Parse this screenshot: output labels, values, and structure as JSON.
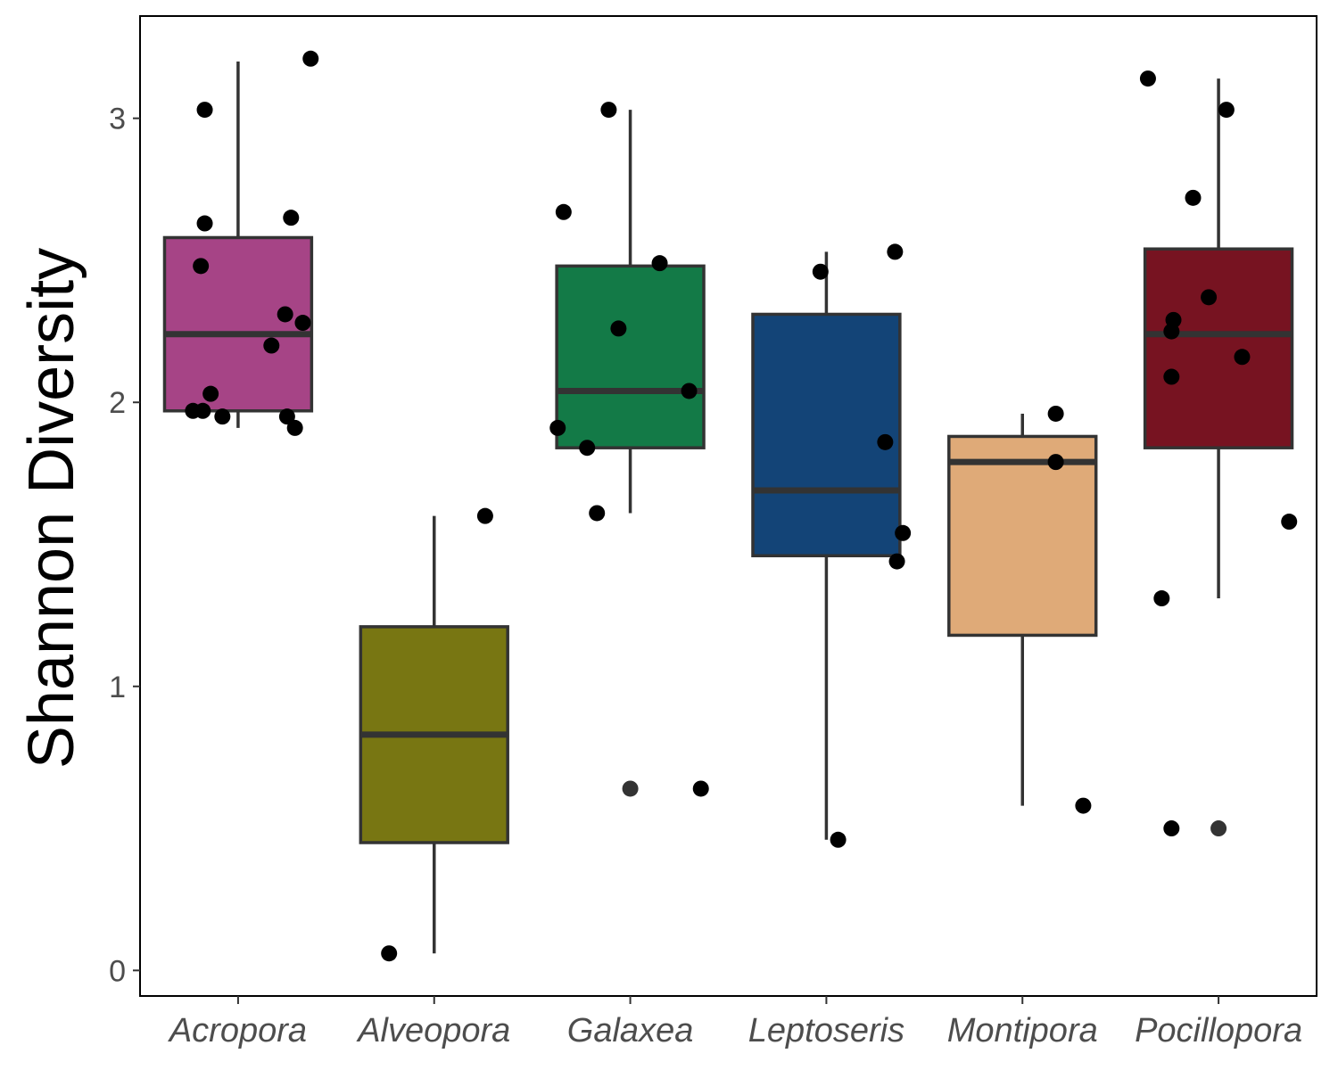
{
  "chart_data": {
    "type": "box",
    "ylabel": "Shannon Diversity",
    "xlabel": "",
    "ylim": [
      -0.09,
      3.36
    ],
    "yticks": [
      0,
      1,
      2,
      3
    ],
    "grid": false,
    "legend": "none",
    "categories": [
      "Acropora",
      "Alveopora",
      "Galaxea",
      "Leptoseris",
      "Montipora",
      "Pocillopora"
    ],
    "colors": [
      "#a64486",
      "#787612",
      "#137a47",
      "#134477",
      "#dfaa78",
      "#771321"
    ],
    "boxes": [
      {
        "category": "Acropora",
        "whisker_low": 1.91,
        "q1": 1.97,
        "median": 2.24,
        "q3": 2.58,
        "whisker_high": 3.2,
        "outliers": []
      },
      {
        "category": "Alveopora",
        "whisker_low": 0.06,
        "q1": 0.45,
        "median": 0.83,
        "q3": 1.21,
        "whisker_high": 1.6,
        "outliers": []
      },
      {
        "category": "Galaxea",
        "whisker_low": 1.61,
        "q1": 1.84,
        "median": 2.04,
        "q3": 2.48,
        "whisker_high": 3.03,
        "outliers": [
          0.64
        ]
      },
      {
        "category": "Leptoseris",
        "whisker_low": 0.46,
        "q1": 1.46,
        "median": 1.69,
        "q3": 2.31,
        "whisker_high": 2.53,
        "outliers": []
      },
      {
        "category": "Montipora",
        "whisker_low": 0.58,
        "q1": 1.18,
        "median": 1.79,
        "q3": 1.88,
        "whisker_high": 1.96,
        "outliers": []
      },
      {
        "category": "Pocillopora",
        "whisker_low": 1.31,
        "q1": 1.84,
        "median": 2.24,
        "q3": 2.54,
        "whisker_high": 3.14,
        "outliers": [
          0.5
        ]
      }
    ],
    "points": [
      {
        "category": "Acropora",
        "jitter": -0.17,
        "y": 3.03
      },
      {
        "category": "Acropora",
        "jitter": 0.37,
        "y": 3.21
      },
      {
        "category": "Acropora",
        "jitter": -0.17,
        "y": 2.63
      },
      {
        "category": "Acropora",
        "jitter": 0.27,
        "y": 2.65
      },
      {
        "category": "Acropora",
        "jitter": -0.19,
        "y": 2.48
      },
      {
        "category": "Acropora",
        "jitter": 0.24,
        "y": 2.31
      },
      {
        "category": "Acropora",
        "jitter": 0.33,
        "y": 2.28
      },
      {
        "category": "Acropora",
        "jitter": 0.17,
        "y": 2.2
      },
      {
        "category": "Acropora",
        "jitter": -0.14,
        "y": 2.03
      },
      {
        "category": "Acropora",
        "jitter": -0.23,
        "y": 1.97
      },
      {
        "category": "Acropora",
        "jitter": -0.18,
        "y": 1.97
      },
      {
        "category": "Acropora",
        "jitter": -0.08,
        "y": 1.95
      },
      {
        "category": "Acropora",
        "jitter": 0.25,
        "y": 1.95
      },
      {
        "category": "Acropora",
        "jitter": 0.29,
        "y": 1.91
      },
      {
        "category": "Alveopora",
        "jitter": 0.26,
        "y": 1.6
      },
      {
        "category": "Alveopora",
        "jitter": -0.23,
        "y": 0.06
      },
      {
        "category": "Galaxea",
        "jitter": -0.11,
        "y": 3.03
      },
      {
        "category": "Galaxea",
        "jitter": -0.34,
        "y": 2.67
      },
      {
        "category": "Galaxea",
        "jitter": 0.15,
        "y": 2.49
      },
      {
        "category": "Galaxea",
        "jitter": -0.06,
        "y": 2.26
      },
      {
        "category": "Galaxea",
        "jitter": 0.3,
        "y": 2.04
      },
      {
        "category": "Galaxea",
        "jitter": -0.37,
        "y": 1.91
      },
      {
        "category": "Galaxea",
        "jitter": -0.22,
        "y": 1.84
      },
      {
        "category": "Galaxea",
        "jitter": -0.17,
        "y": 1.61
      },
      {
        "category": "Galaxea",
        "jitter": 0.36,
        "y": 0.64
      },
      {
        "category": "Leptoseris",
        "jitter": -0.03,
        "y": 2.46
      },
      {
        "category": "Leptoseris",
        "jitter": 0.35,
        "y": 2.53
      },
      {
        "category": "Leptoseris",
        "jitter": 0.3,
        "y": 1.86
      },
      {
        "category": "Leptoseris",
        "jitter": 0.39,
        "y": 1.54
      },
      {
        "category": "Leptoseris",
        "jitter": 0.36,
        "y": 1.44
      },
      {
        "category": "Leptoseris",
        "jitter": 0.06,
        "y": 0.46
      },
      {
        "category": "Montipora",
        "jitter": 0.17,
        "y": 1.96
      },
      {
        "category": "Montipora",
        "jitter": 0.17,
        "y": 1.79
      },
      {
        "category": "Montipora",
        "jitter": 0.31,
        "y": 0.58
      },
      {
        "category": "Pocillopora",
        "jitter": -0.36,
        "y": 3.14
      },
      {
        "category": "Pocillopora",
        "jitter": 0.04,
        "y": 3.03
      },
      {
        "category": "Pocillopora",
        "jitter": -0.13,
        "y": 2.72
      },
      {
        "category": "Pocillopora",
        "jitter": -0.05,
        "y": 2.37
      },
      {
        "category": "Pocillopora",
        "jitter": -0.23,
        "y": 2.29
      },
      {
        "category": "Pocillopora",
        "jitter": -0.24,
        "y": 2.25
      },
      {
        "category": "Pocillopora",
        "jitter": 0.12,
        "y": 2.16
      },
      {
        "category": "Pocillopora",
        "jitter": -0.24,
        "y": 2.09
      },
      {
        "category": "Pocillopora",
        "jitter": 0.36,
        "y": 1.58
      },
      {
        "category": "Pocillopora",
        "jitter": -0.29,
        "y": 1.31
      },
      {
        "category": "Pocillopora",
        "jitter": -0.24,
        "y": 0.5
      }
    ]
  }
}
